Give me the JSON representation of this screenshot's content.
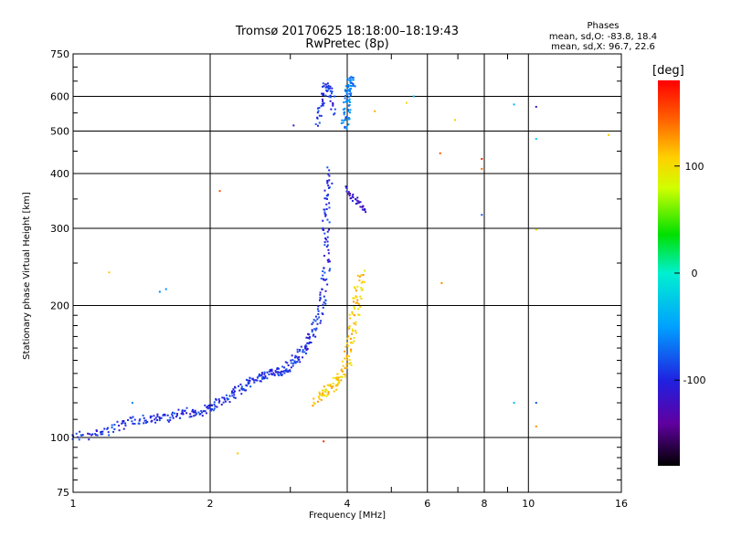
{
  "chart_data": {
    "type": "scatter",
    "title": "Tromsø 20170625 18:18:00–18:19:43",
    "subtitle": "RwPretec (8p)",
    "xlabel": "Frequency [MHz]",
    "ylabel": "Stationary phase Virtual Height [km]",
    "x_scale": "log",
    "y_scale": "log",
    "xlim": [
      1,
      16
    ],
    "ylim": [
      75,
      750
    ],
    "x_ticks": [
      1,
      2,
      4,
      6,
      8,
      10,
      16
    ],
    "x_tick_labels": [
      "1",
      "2",
      "4",
      "6",
      "8",
      "10",
      "16"
    ],
    "x_minor_ticks": [
      3,
      5,
      7,
      9
    ],
    "y_ticks": [
      75,
      100,
      200,
      300,
      400,
      500,
      600,
      750
    ],
    "y_tick_labels": [
      "75",
      "100",
      "200",
      "300",
      "400",
      "500",
      "600",
      "750"
    ],
    "grid": true,
    "phase_info": {
      "heading": "Phases",
      "line1": "mean, sd,O: -83.8, 18.4",
      "line2": "mean, sd,X:  96.7, 22.6"
    },
    "colorbar": {
      "label": "[deg]",
      "range": [
        -180,
        180
      ],
      "ticks": [
        100,
        0,
        -100
      ],
      "tick_labels": [
        "100",
        "0",
        "-100"
      ]
    },
    "o_trace": {
      "name": "O",
      "frequency_mhz": [
        1.0,
        1.1,
        1.2,
        1.3,
        1.4,
        1.5,
        1.6,
        1.7,
        1.8,
        1.9,
        2.0,
        2.1,
        2.2,
        2.3,
        2.4,
        2.5,
        2.6,
        2.7,
        2.8,
        2.9,
        3.0,
        3.1,
        3.2,
        3.3,
        3.4,
        3.5,
        3.55,
        3.6,
        3.6,
        3.6,
        3.62,
        3.65
      ],
      "height_km": [
        101,
        101,
        104,
        107,
        110,
        110,
        111,
        113,
        114,
        113,
        117,
        120,
        124,
        128,
        132,
        135,
        138,
        140,
        141,
        142,
        146,
        152,
        158,
        166,
        178,
        195,
        215,
        240,
        280,
        320,
        360,
        410
      ],
      "f2_cusp_frequency_mhz": [
        3.45,
        3.5,
        3.55,
        3.6,
        3.65,
        3.7,
        3.75
      ],
      "f2_cusp_height_km": [
        520,
        560,
        600,
        640,
        630,
        600,
        540
      ],
      "f2_frequency_mhz": [
        3.95,
        3.98,
        4.0,
        4.02,
        4.05,
        4.08,
        4.1
      ],
      "f2_height_km": [
        510,
        540,
        570,
        600,
        630,
        650,
        620
      ],
      "descending_frequency_mhz": [
        4.0,
        4.1,
        4.2,
        4.3,
        4.4
      ],
      "descending_height_km": [
        370,
        355,
        345,
        335,
        325
      ],
      "phase_deg": -95
    },
    "x_trace": {
      "name": "X",
      "frequency_mhz": [
        3.4,
        3.5,
        3.6,
        3.7,
        3.8,
        3.9,
        4.0,
        4.05,
        4.1,
        4.15,
        4.2,
        4.25,
        4.3
      ],
      "height_km": [
        120,
        125,
        128,
        130,
        135,
        140,
        148,
        160,
        175,
        190,
        205,
        220,
        240
      ],
      "phase_deg": 110
    },
    "scattered_points": [
      {
        "f": 1.2,
        "h": 238,
        "phase": 110
      },
      {
        "f": 1.55,
        "h": 215,
        "phase": -60
      },
      {
        "f": 1.6,
        "h": 218,
        "phase": -60
      },
      {
        "f": 2.1,
        "h": 365,
        "phase": 150
      },
      {
        "f": 2.3,
        "h": 92,
        "phase": 110
      },
      {
        "f": 3.05,
        "h": 515,
        "phase": -120
      },
      {
        "f": 4.6,
        "h": 555,
        "phase": 120
      },
      {
        "f": 5.4,
        "h": 580,
        "phase": 100
      },
      {
        "f": 5.6,
        "h": 600,
        "phase": -30
      },
      {
        "f": 6.4,
        "h": 445,
        "phase": 150
      },
      {
        "f": 6.45,
        "h": 225,
        "phase": 130
      },
      {
        "f": 6.9,
        "h": 530,
        "phase": 110
      },
      {
        "f": 7.9,
        "h": 432,
        "phase": 165
      },
      {
        "f": 7.9,
        "h": 410,
        "phase": 140
      },
      {
        "f": 7.9,
        "h": 322,
        "phase": -80
      },
      {
        "f": 9.3,
        "h": 575,
        "phase": -40
      },
      {
        "f": 9.3,
        "h": 120,
        "phase": -30
      },
      {
        "f": 10.4,
        "h": 568,
        "phase": -120
      },
      {
        "f": 10.4,
        "h": 480,
        "phase": -20
      },
      {
        "f": 10.4,
        "h": 298,
        "phase": 100
      },
      {
        "f": 10.4,
        "h": 120,
        "phase": -80
      },
      {
        "f": 10.4,
        "h": 106,
        "phase": 130
      },
      {
        "f": 15.0,
        "h": 490,
        "phase": 110
      },
      {
        "f": 3.55,
        "h": 98,
        "phase": 165
      },
      {
        "f": 1.35,
        "h": 120,
        "phase": -60
      }
    ]
  }
}
